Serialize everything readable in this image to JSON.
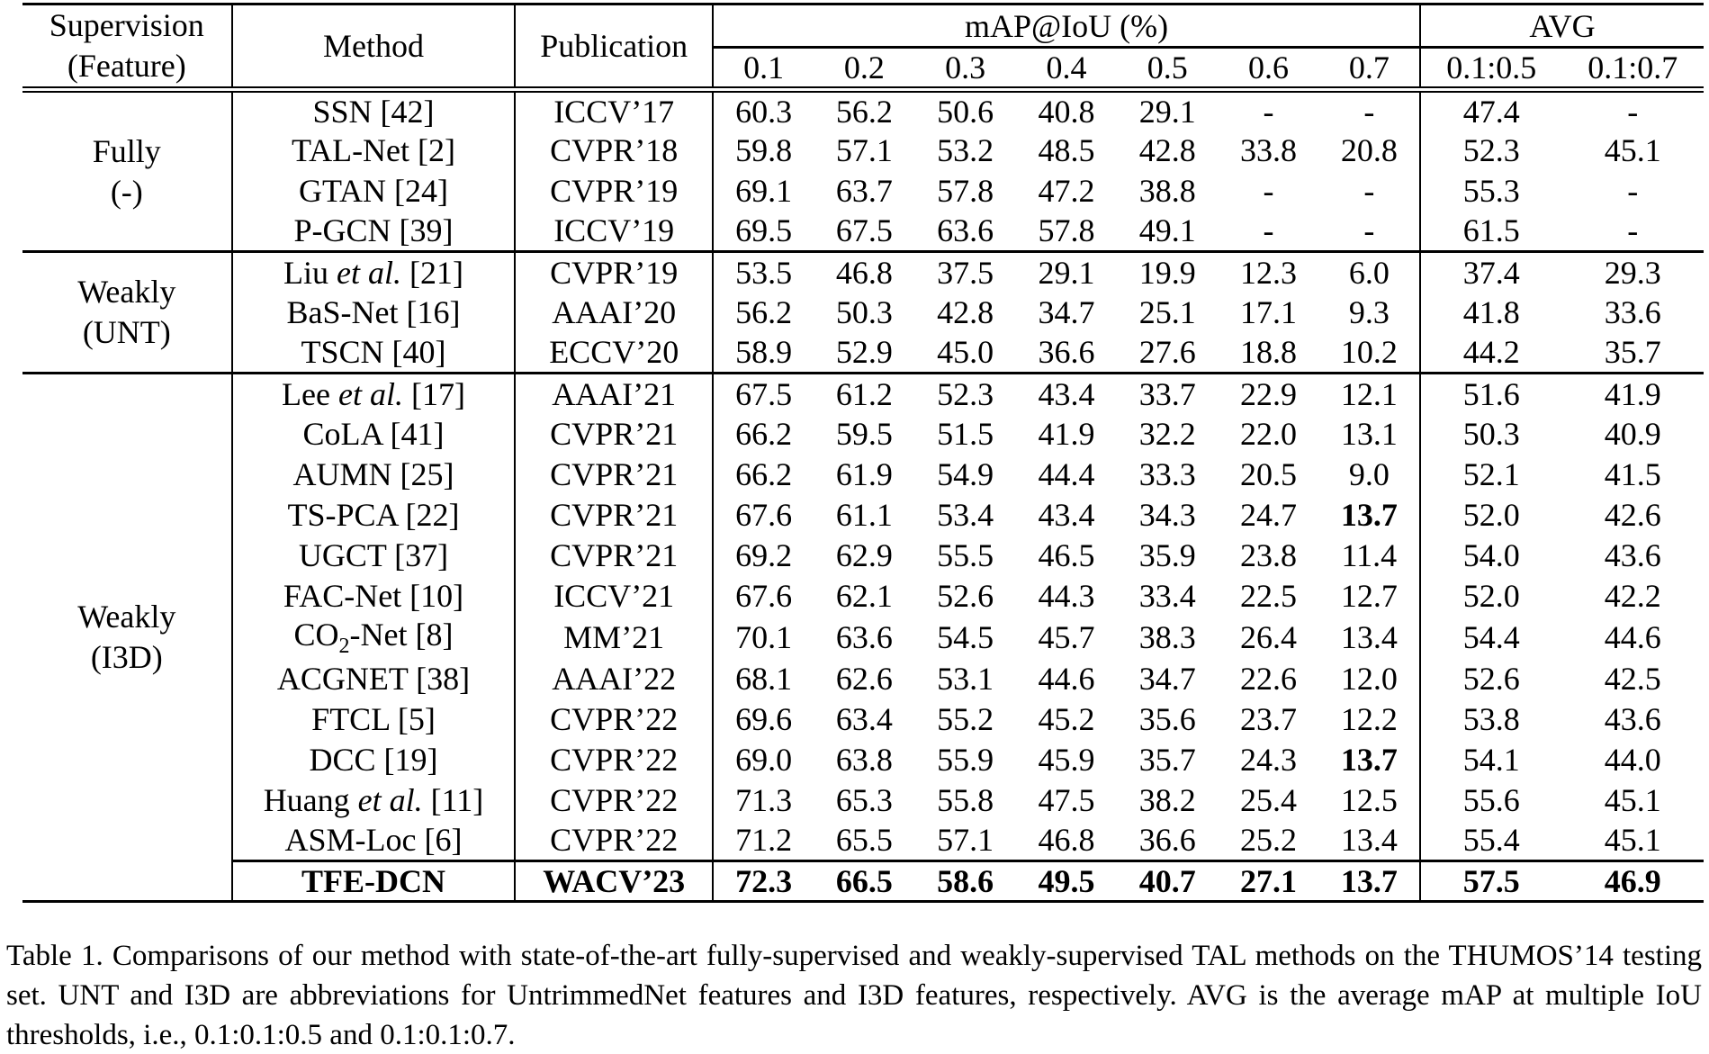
{
  "table": {
    "header": {
      "supervision_label": "Supervision\n(Feature)",
      "method_label": "Method",
      "publication_label": "Publication",
      "map_group_label": "mAP@IoU (%)",
      "avg_group_label": "AVG",
      "iou_labels": [
        "0.1",
        "0.2",
        "0.3",
        "0.4",
        "0.5",
        "0.6",
        "0.7"
      ],
      "avg_labels": [
        "0.1:0.5",
        "0.1:0.7"
      ]
    },
    "groups": [
      {
        "supervision": "Fully\n(-)",
        "rows": [
          {
            "method": "SSN [42]",
            "publication": "ICCV’17",
            "values": [
              "60.3",
              "56.2",
              "50.6",
              "40.8",
              "29.1",
              "-",
              "-",
              "47.4",
              "-"
            ]
          },
          {
            "method": "TAL-Net [2]",
            "publication": "CVPR’18",
            "values": [
              "59.8",
              "57.1",
              "53.2",
              "48.5",
              "42.8",
              "33.8",
              "20.8",
              "52.3",
              "45.1"
            ]
          },
          {
            "method": "GTAN [24]",
            "publication": "CVPR’19",
            "values": [
              "69.1",
              "63.7",
              "57.8",
              "47.2",
              "38.8",
              "-",
              "-",
              "55.3",
              "-"
            ]
          },
          {
            "method": "P-GCN [39]",
            "publication": "ICCV’19",
            "values": [
              "69.5",
              "67.5",
              "63.6",
              "57.8",
              "49.1",
              "-",
              "-",
              "61.5",
              "-"
            ]
          }
        ]
      },
      {
        "supervision": "Weakly\n(UNT)",
        "rows": [
          {
            "method": "Liu *et al.* [21]",
            "publication": "CVPR’19",
            "values": [
              "53.5",
              "46.8",
              "37.5",
              "29.1",
              "19.9",
              "12.3",
              "6.0",
              "37.4",
              "29.3"
            ]
          },
          {
            "method": "BaS-Net [16]",
            "publication": "AAAI’20",
            "values": [
              "56.2",
              "50.3",
              "42.8",
              "34.7",
              "25.1",
              "17.1",
              "9.3",
              "41.8",
              "33.6"
            ]
          },
          {
            "method": "TSCN [40]",
            "publication": "ECCV’20",
            "values": [
              "58.9",
              "52.9",
              "45.0",
              "36.6",
              "27.6",
              "18.8",
              "10.2",
              "44.2",
              "35.7"
            ]
          }
        ]
      },
      {
        "supervision": "Weakly\n(I3D)",
        "rows": [
          {
            "method": "Lee *et al.* [17]",
            "publication": "AAAI’21",
            "values": [
              "67.5",
              "61.2",
              "52.3",
              "43.4",
              "33.7",
              "22.9",
              "12.1",
              "51.6",
              "41.9"
            ]
          },
          {
            "method": "CoLA [41]",
            "publication": "CVPR’21",
            "values": [
              "66.2",
              "59.5",
              "51.5",
              "41.9",
              "32.2",
              "22.0",
              "13.1",
              "50.3",
              "40.9"
            ]
          },
          {
            "method": "AUMN [25]",
            "publication": "CVPR’21",
            "values": [
              "66.2",
              "61.9",
              "54.9",
              "44.4",
              "33.3",
              "20.5",
              "9.0",
              "52.1",
              "41.5"
            ]
          },
          {
            "method": "TS-PCA [22]",
            "publication": "CVPR’21",
            "values": [
              "67.6",
              "61.1",
              "53.4",
              "43.4",
              "34.3",
              "24.7",
              "**13.7**",
              "52.0",
              "42.6"
            ]
          },
          {
            "method": "UGCT [37]",
            "publication": "CVPR’21",
            "values": [
              "69.2",
              "62.9",
              "55.5",
              "46.5",
              "35.9",
              "23.8",
              "11.4",
              "54.0",
              "43.6"
            ]
          },
          {
            "method": "FAC-Net [10]",
            "publication": "ICCV’21",
            "values": [
              "67.6",
              "62.1",
              "52.6",
              "44.3",
              "33.4",
              "22.5",
              "12.7",
              "52.0",
              "42.2"
            ]
          },
          {
            "method": "CO~2~-Net [8]",
            "publication": "MM’21",
            "values": [
              "70.1",
              "63.6",
              "54.5",
              "45.7",
              "38.3",
              "26.4",
              "13.4",
              "54.4",
              "44.6"
            ]
          },
          {
            "method": "ACGNET [38]",
            "publication": "AAAI’22",
            "values": [
              "68.1",
              "62.6",
              "53.1",
              "44.6",
              "34.7",
              "22.6",
              "12.0",
              "52.6",
              "42.5"
            ]
          },
          {
            "method": "FTCL [5]",
            "publication": "CVPR’22",
            "values": [
              "69.6",
              "63.4",
              "55.2",
              "45.2",
              "35.6",
              "23.7",
              "12.2",
              "53.8",
              "43.6"
            ]
          },
          {
            "method": "DCC [19]",
            "publication": "CVPR’22",
            "values": [
              "69.0",
              "63.8",
              "55.9",
              "45.9",
              "35.7",
              "24.3",
              "**13.7**",
              "54.1",
              "44.0"
            ]
          },
          {
            "method": "Huang *et al.* [11]",
            "publication": "CVPR’22",
            "values": [
              "71.3",
              "65.3",
              "55.8",
              "47.5",
              "38.2",
              "25.4",
              "12.5",
              "55.6",
              "45.1"
            ]
          },
          {
            "method": "ASM-Loc [6]",
            "publication": "CVPR’22",
            "values": [
              "71.2",
              "65.5",
              "57.1",
              "46.8",
              "36.6",
              "25.2",
              "13.4",
              "55.4",
              "45.1"
            ]
          },
          {
            "method": "TFE-DCN",
            "publication": "WACV’23",
            "values": [
              "72.3",
              "66.5",
              "58.6",
              "49.5",
              "40.7",
              "27.1",
              "13.7",
              "57.5",
              "46.9"
            ],
            "bold": true,
            "topline": true
          }
        ]
      }
    ]
  },
  "caption": "Table 1. Comparisons of our method with state-of-the-art fully-supervised and weakly-supervised TAL methods on the THUMOS’14 testing set. UNT and I3D are abbreviations for UntrimmedNet features and I3D features, respectively. AVG is the average mAP at multiple IoU thresholds, i.e., 0.1:0.1:0.5 and 0.1:0.1:0.7."
}
